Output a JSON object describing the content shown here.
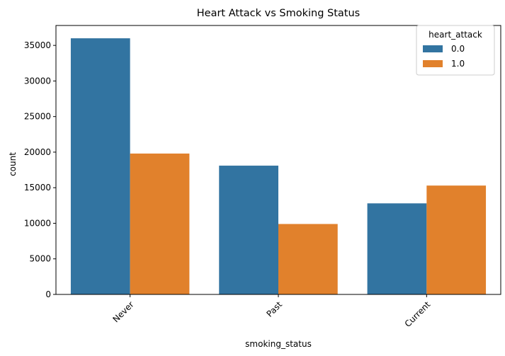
{
  "chart_data": {
    "type": "bar",
    "title": "Heart Attack vs Smoking Status",
    "xlabel": "smoking_status",
    "ylabel": "count",
    "categories": [
      "Never",
      "Past",
      "Current"
    ],
    "series": [
      {
        "name": "0.0",
        "values": [
          36000,
          18100,
          12800
        ],
        "color": "#3274a1"
      },
      {
        "name": "1.0",
        "values": [
          19800,
          9900,
          15300
        ],
        "color": "#e1812c"
      }
    ],
    "ylim": [
      0,
      37800
    ],
    "yticks": [
      0,
      5000,
      10000,
      15000,
      20000,
      25000,
      30000,
      35000
    ],
    "legend": {
      "title": "heart_attack",
      "position": "top-right"
    },
    "grid": false,
    "xtick_rotation_deg": 45
  }
}
